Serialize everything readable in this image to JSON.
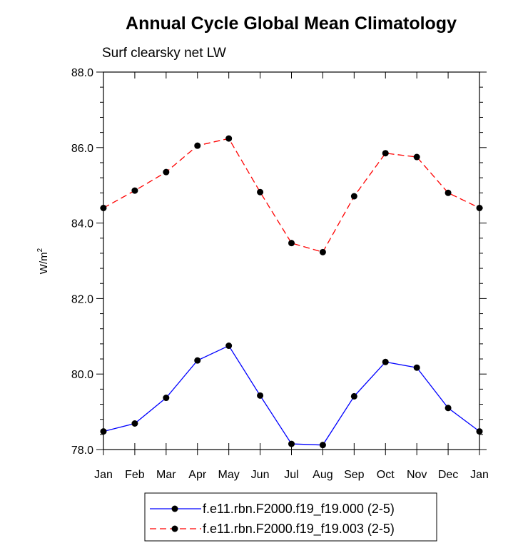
{
  "chart_data": {
    "type": "line",
    "title": "Annual Cycle Global Mean Climatology",
    "subtitle": "Surf clearsky net LW",
    "xlabel": "",
    "ylabel": "W/m",
    "ylabel_superscript": "2",
    "categories": [
      "Jan",
      "Feb",
      "Mar",
      "Apr",
      "May",
      "Jun",
      "Jul",
      "Aug",
      "Sep",
      "Oct",
      "Nov",
      "Dec",
      "Jan"
    ],
    "ylim": [
      78.0,
      88.0
    ],
    "yticks": [
      "78.0",
      "80.0",
      "82.0",
      "84.0",
      "86.0",
      "88.0"
    ],
    "grid": false,
    "legend_position": "bottom",
    "series": [
      {
        "name": "f.e11.rbn.F2000.f19_f19.000 (2-5)",
        "color": "#0000ff",
        "dash": "solid",
        "values": [
          78.48,
          78.69,
          79.37,
          80.36,
          80.75,
          79.43,
          78.15,
          78.12,
          79.41,
          80.32,
          80.17,
          79.1,
          78.48
        ]
      },
      {
        "name": "f.e11.rbn.F2000.f19_f19.003 (2-5)",
        "color": "#ff0000",
        "dash": "dashed",
        "values": [
          84.4,
          84.86,
          85.35,
          86.05,
          86.24,
          84.82,
          83.47,
          83.23,
          84.71,
          85.85,
          85.75,
          84.8,
          84.4
        ]
      }
    ]
  }
}
